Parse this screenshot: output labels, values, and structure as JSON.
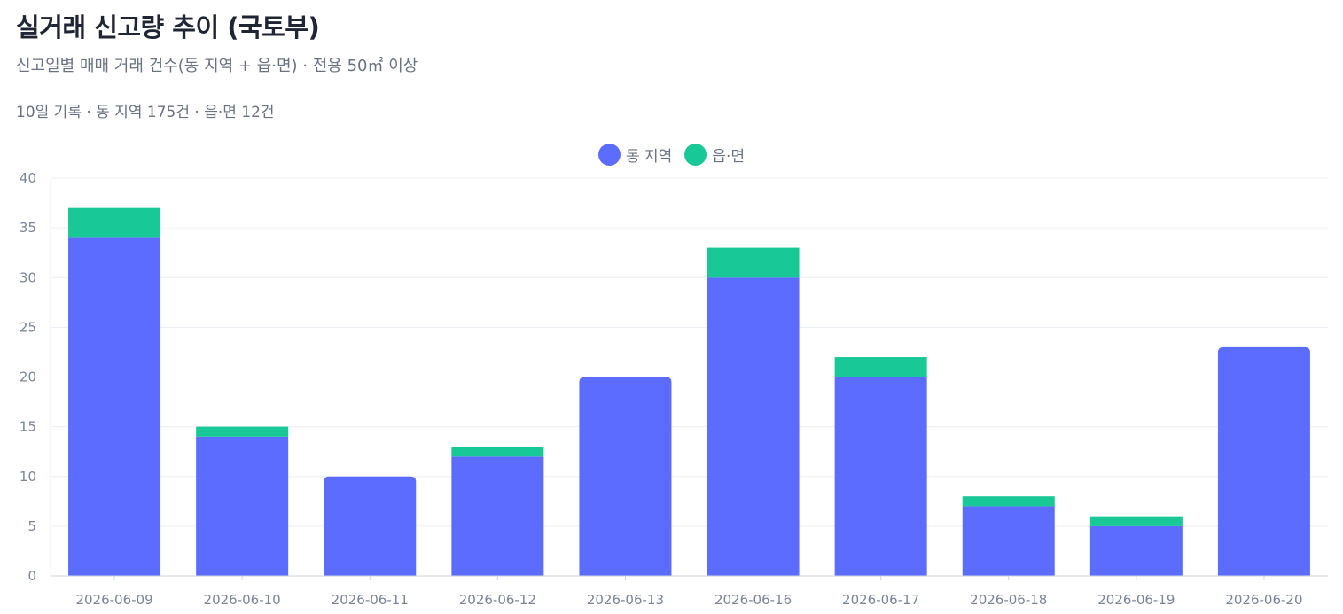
{
  "header": {
    "title": "실거래 신고량 추이 (국토부)",
    "subtitle": "신고일별 매매 거래 건수(동 지역 + 읍·면) · 전용 50㎡ 이상",
    "summary": "10일 기록 · 동 지역 175건 · 읍·면 12건"
  },
  "colors": {
    "dong": "#5b6cff",
    "eupmyeon": "#19c897",
    "grid": "#eceff3",
    "axis": "#cfd4dc"
  },
  "chart_data": {
    "type": "bar",
    "stacked": true,
    "categories": [
      "2026-06-09",
      "2026-06-10",
      "2026-06-11",
      "2026-06-12",
      "2026-06-13",
      "2026-06-16",
      "2026-06-17",
      "2026-06-18",
      "2026-06-19",
      "2026-06-20"
    ],
    "series": [
      {
        "name": "동 지역",
        "values": [
          34,
          14,
          10,
          12,
          20,
          30,
          20,
          7,
          5,
          23
        ]
      },
      {
        "name": "읍·면",
        "values": [
          3,
          1,
          0,
          1,
          0,
          3,
          2,
          1,
          1,
          0
        ]
      }
    ],
    "ylim": [
      0,
      40
    ],
    "yticks": [
      0,
      5,
      10,
      15,
      20,
      25,
      30,
      35,
      40
    ],
    "grid": true,
    "legend_position": "top-center"
  }
}
